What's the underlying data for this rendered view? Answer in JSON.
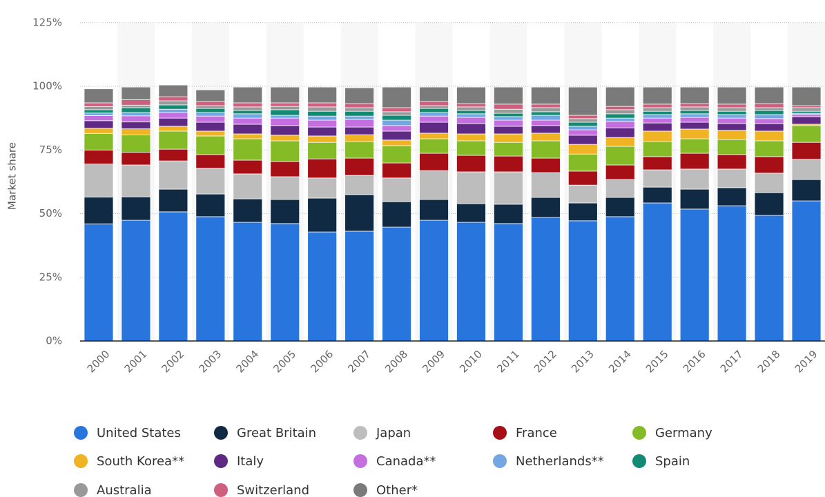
{
  "chart_data": {
    "type": "stacked_bar",
    "y_label": "Market share",
    "categories": [
      "2000",
      "2001",
      "2002",
      "2003",
      "2004",
      "2005",
      "2006",
      "2007",
      "2008",
      "2009",
      "2010",
      "2011",
      "2012",
      "2013",
      "2014",
      "2015",
      "2016",
      "2017",
      "2018",
      "2019"
    ],
    "ylim": [
      0,
      125
    ],
    "yticks": [
      {
        "value": 0,
        "label": "0%"
      },
      {
        "value": 25,
        "label": "25%"
      },
      {
        "value": 50,
        "label": "50%"
      },
      {
        "value": 75,
        "label": "75%"
      },
      {
        "value": 100,
        "label": "100%"
      },
      {
        "value": 125,
        "label": "125%"
      }
    ],
    "grid": true,
    "legend": "bottom",
    "series": [
      {
        "name": "United States",
        "color": "#2876dd",
        "values": [
          46,
          47.4,
          50.7,
          48.8,
          46.6,
          46.1,
          42.8,
          43.1,
          44.7,
          47.4,
          46.6,
          46.1,
          48.5,
          47.2,
          48.8,
          54.2,
          51.8,
          53.1,
          49.3,
          55
        ]
      },
      {
        "name": "Great Britain",
        "color": "#0f2a42",
        "values": [
          10.5,
          9.2,
          8.9,
          8.9,
          9.2,
          9.5,
          13.3,
          14.4,
          10,
          8.2,
          7.3,
          7.6,
          7.9,
          7,
          7.6,
          6.2,
          7.8,
          7.1,
          9,
          8.4
        ]
      },
      {
        "name": "Japan",
        "color": "#bdbdbd",
        "values": [
          13,
          12.5,
          11.1,
          10.1,
          9.8,
          8.9,
          7.9,
          7.5,
          9.3,
          11.3,
          12.5,
          12.7,
          9.7,
          7,
          7,
          6.8,
          7.9,
          7.3,
          7.6,
          7.9
        ]
      },
      {
        "name": "France",
        "color": "#a50f15",
        "values": [
          5.5,
          5,
          4.6,
          5.4,
          5.4,
          6,
          7.5,
          6.8,
          5.9,
          6.8,
          6.5,
          6.2,
          5.7,
          5.5,
          5.7,
          5.2,
          6.2,
          5.7,
          6.5,
          6.7
        ]
      },
      {
        "name": "Germany",
        "color": "#84bb26",
        "values": [
          6.5,
          6.8,
          7.1,
          7.3,
          8.4,
          8.1,
          6.5,
          6.5,
          6.8,
          5.7,
          5.7,
          5.4,
          6.8,
          6.7,
          7.3,
          5.9,
          5.7,
          5.9,
          6.2,
          6.6
        ]
      },
      {
        "name": "South Korea**",
        "color": "#f0b323",
        "values": [
          2,
          2.4,
          1.9,
          1.9,
          1.9,
          2.2,
          2.5,
          2.7,
          2.2,
          2.2,
          2.7,
          3.3,
          3,
          3.8,
          3.5,
          4.1,
          3.8,
          3.6,
          3.8,
          0.5
        ]
      },
      {
        "name": "Italy",
        "color": "#5e2a84",
        "values": [
          3,
          2.7,
          3.2,
          3.5,
          3.8,
          3.8,
          3.5,
          3,
          3.5,
          4.3,
          4.1,
          3,
          3,
          3.6,
          3.8,
          3.2,
          2.7,
          2.7,
          3,
          3
        ]
      },
      {
        "name": "Canada**",
        "color": "#c46ee0",
        "values": [
          2,
          2.4,
          2.2,
          2.4,
          2.4,
          2.9,
          2.7,
          3,
          2.2,
          2.4,
          2.4,
          2.4,
          2.1,
          2.1,
          2.5,
          1.9,
          1.9,
          2.1,
          1.9,
          0.8
        ]
      },
      {
        "name": "Netherlands**",
        "color": "#74a7e2",
        "values": [
          1,
          1.3,
          1.3,
          1.4,
          1.7,
          1.1,
          1.6,
          1.3,
          2.1,
          1.4,
          1.4,
          1.4,
          1.9,
          1.4,
          1.3,
          1.4,
          1.4,
          1.4,
          1.6,
          0.5
        ]
      },
      {
        "name": "Spain",
        "color": "#138a72",
        "values": [
          1.3,
          1.9,
          1.7,
          1.6,
          1.3,
          2.2,
          1.9,
          1.9,
          1.9,
          1.6,
          1.3,
          1.3,
          1.4,
          1.6,
          1.7,
          1.3,
          1.3,
          1.3,
          1.6,
          0.8
        ]
      },
      {
        "name": "Australia",
        "color": "#999999",
        "values": [
          1.2,
          1,
          1.6,
          1.1,
          1.4,
          1.3,
          1.7,
          1.4,
          1.4,
          1.1,
          1.4,
          1.6,
          1.6,
          1.4,
          1.6,
          1.4,
          1.4,
          1.4,
          1.1,
          1.4
        ]
      },
      {
        "name": "Switzerland",
        "color": "#cf5f7f",
        "values": [
          1.5,
          2.1,
          1.6,
          1.6,
          1.6,
          1.4,
          1.6,
          1.6,
          1.6,
          1.6,
          1.3,
          2,
          1.4,
          1.3,
          1.3,
          1.4,
          1.3,
          1.4,
          1.6,
          0.8
        ]
      },
      {
        "name": "Other*",
        "color": "#7a7a7a",
        "values": [
          5.5,
          5,
          4.6,
          4.6,
          6.2,
          6.2,
          6.2,
          6.2,
          8.1,
          5.7,
          6.5,
          6.7,
          6.7,
          11.1,
          7.6,
          6.7,
          6.5,
          6.7,
          6.5,
          7.3
        ]
      }
    ]
  }
}
